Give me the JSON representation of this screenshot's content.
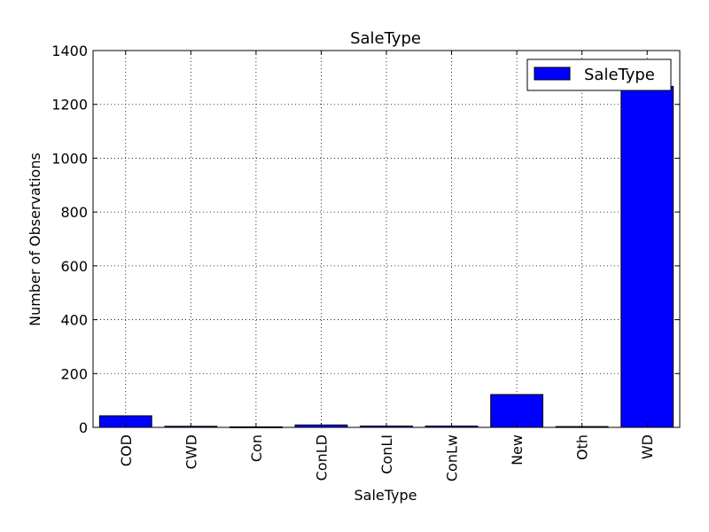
{
  "chart_data": {
    "type": "bar",
    "title": "SaleType",
    "xlabel": "SaleType",
    "ylabel": "Number of Observations",
    "categories": [
      "COD",
      "CWD",
      "Con",
      "ConLD",
      "ConLI",
      "ConLw",
      "New",
      "Oth",
      "WD"
    ],
    "series": [
      {
        "name": "SaleType",
        "values": [
          43,
          4,
          2,
          9,
          5,
          5,
          122,
          3,
          1267
        ]
      }
    ],
    "ylim": [
      0,
      1400
    ],
    "yticks": [
      0,
      200,
      400,
      600,
      800,
      1000,
      1200,
      1400
    ],
    "grid": true,
    "legend": "top-right",
    "bar_color": "#0000ff",
    "edge_color": "#000000"
  }
}
